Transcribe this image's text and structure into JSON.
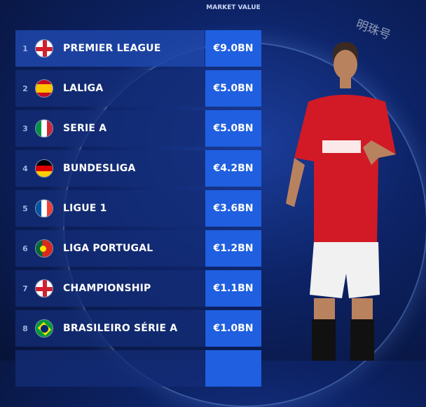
{
  "header": {
    "market_value": "MARKET VALUE"
  },
  "watermark": "明珠号",
  "colors": {
    "value_cell": "#1f5fe0",
    "background": "#0d2366"
  },
  "leagues": [
    {
      "rank": "1",
      "flag": "england",
      "name": "PREMIER LEAGUE",
      "value": "€9.0BN"
    },
    {
      "rank": "2",
      "flag": "spain",
      "name": "LALIGA",
      "value": "€5.0BN"
    },
    {
      "rank": "3",
      "flag": "italy",
      "name": "SERIE A",
      "value": "€5.0BN"
    },
    {
      "rank": "4",
      "flag": "germany",
      "name": "BUNDESLIGA",
      "value": "€4.2BN"
    },
    {
      "rank": "5",
      "flag": "france",
      "name": "LIGUE 1",
      "value": "€3.6BN"
    },
    {
      "rank": "6",
      "flag": "portugal",
      "name": "LIGA PORTUGAL",
      "value": "€1.2BN"
    },
    {
      "rank": "7",
      "flag": "england",
      "name": "CHAMPIONSHIP",
      "value": "€1.1BN"
    },
    {
      "rank": "8",
      "flag": "brazil",
      "name": "BRASILEIRO SÉRIE A",
      "value": "€1.0BN"
    }
  ]
}
